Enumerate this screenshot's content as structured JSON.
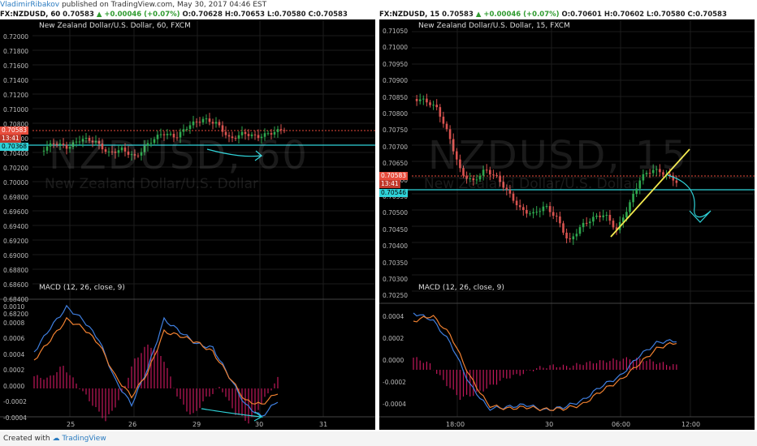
{
  "header": {
    "author": "VladimirRibakov",
    "published": "published on TradingView.com, May 30, 2017 04:46 EST"
  },
  "left": {
    "ohlc": {
      "symbol": "FX:NZDUSD, 60",
      "last": "0.70583",
      "change": "▲ +0.00046 (+0.07%)",
      "o": "O:0.70628",
      "h": "H:0.70653",
      "l": "L:0.70580",
      "c": "C:0.70583"
    },
    "title": "New Zealand Dollar/U.S. Dollar, 60, FXCM",
    "watermark": "NZDUSD, 60",
    "watermark_sub": "New Zealand Dollar/U.S. Dollar",
    "price_axis": [
      "0.72000",
      "0.71800",
      "0.71600",
      "0.71400",
      "0.71200",
      "0.71000",
      "0.70800",
      "0.70600",
      "0.70400",
      "0.70200",
      "0.70000",
      "0.69800",
      "0.69600",
      "0.69400",
      "0.69200",
      "0.69000",
      "0.68800",
      "0.68600",
      "0.68400",
      "0.68200"
    ],
    "tags": {
      "price": "0.70583",
      "time": "13:41",
      "level": "0.70368"
    },
    "macd_title": "MACD (12, 26, close, 9)",
    "macd_axis": [
      "0.0010",
      "0.0008",
      "0.0006",
      "0.0004",
      "0.0002",
      "0.0000",
      "-0.0002",
      "-0.0004"
    ],
    "x_axis": [
      "25",
      "26",
      "29",
      "30",
      "31"
    ]
  },
  "right": {
    "ohlc": {
      "symbol": "FX:NZDUSD, 15",
      "last": "0.70583",
      "change": "▲ +0.00046 (+0.07%)",
      "o": "O:0.70601",
      "h": "H:0.70602",
      "l": "L:0.70580",
      "c": "C:0.70583"
    },
    "title": "New Zealand Dollar/U.S. Dollar, 15, FXCM",
    "watermark": "NZDUSD, 15",
    "watermark_sub": "New Zealand Dollar/U.S. Dollar",
    "price_axis": [
      "0.71050",
      "0.71000",
      "0.70950",
      "0.70900",
      "0.70850",
      "0.70800",
      "0.70750",
      "0.70700",
      "0.70650",
      "0.70600",
      "0.70550",
      "0.70500",
      "0.70450",
      "0.70400",
      "0.70350",
      "0.70300",
      "0.70250"
    ],
    "tags": {
      "price": "0.70583",
      "time": "13:41",
      "level": "0.70546"
    },
    "macd_title": "MACD (12, 26, close, 9)",
    "macd_axis": [
      "0.0004",
      "0.0002",
      "0.0000",
      "-0.0002",
      "-0.0004"
    ],
    "x_axis": [
      "18:00",
      "30",
      "06:00",
      "12:00"
    ]
  },
  "footer": {
    "created_with": "Created with",
    "brand": "TradingView"
  },
  "colors": {
    "bull": "#2fa84f",
    "bear": "#d9534f",
    "price_line": "#e74c3c",
    "level_line": "#2fd3d9",
    "macd": "#3f7fe0",
    "signal": "#f08030",
    "hist": "#c2185b",
    "trend": "#f2e94e"
  }
}
